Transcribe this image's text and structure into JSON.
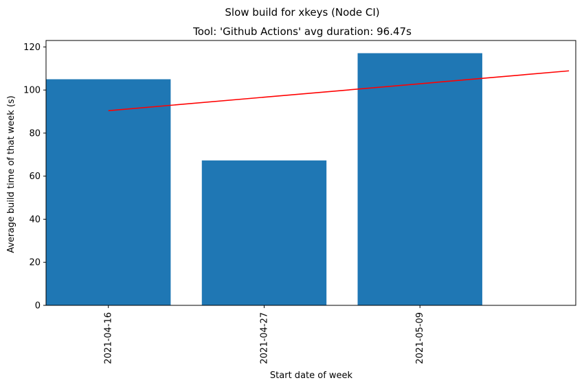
{
  "chart_data": {
    "type": "bar",
    "suptitle": "Slow build for xkeys (Node CI)",
    "title": "Tool: 'Github Actions' avg duration: 96.47s",
    "xlabel": "Start date of week",
    "ylabel": "Average build time of that week (s)",
    "categories": [
      "2021-04-16",
      "2021-04-27",
      "2021-05-09"
    ],
    "values": [
      105,
      67.3,
      117.1
    ],
    "ylim": [
      0,
      123
    ],
    "yticks": [
      0,
      20,
      40,
      60,
      80,
      100,
      120
    ],
    "bar_color": "#1f77b4",
    "trend_line": {
      "color": "#ff0000",
      "x_start_date": "2021-04-16",
      "x_end_date": "2021-05-20",
      "y_start": 90.4,
      "y_end": 108.9
    },
    "grid": false,
    "legend": "none"
  }
}
